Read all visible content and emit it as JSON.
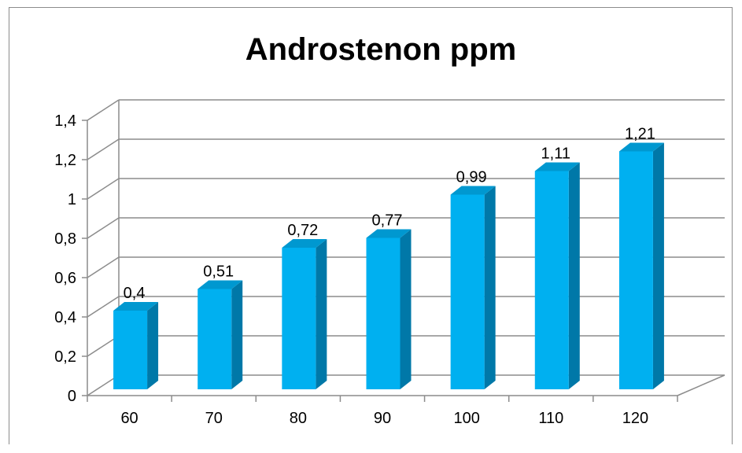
{
  "chart_data": {
    "type": "bar",
    "title": "Androstenon  ppm",
    "xlabel": "",
    "ylabel": "",
    "categories": [
      "60",
      "70",
      "80",
      "90",
      "100",
      "110",
      "120"
    ],
    "values": [
      0.4,
      0.51,
      0.72,
      0.77,
      0.99,
      1.11,
      1.21
    ],
    "value_labels": [
      "0,4",
      "0,51",
      "0,72",
      "0,77",
      "0,99",
      "1,11",
      "1,21"
    ],
    "ylim": [
      0,
      1.4
    ],
    "y_ticks": [
      0,
      0.2,
      0.4,
      0.6,
      0.8,
      1,
      1.2,
      1.4
    ],
    "y_tick_labels": [
      "0",
      "0,2",
      "0,4",
      "0,6",
      "0,8",
      "1",
      "1,2",
      "1,4"
    ],
    "grid": true,
    "legend": "none",
    "style": "3d-column",
    "colors": {
      "bar_front": "#00b0f0",
      "bar_side": "#0078a8",
      "bar_top": "#0098d0",
      "grid": "#8c8c8c",
      "text": "#000000"
    }
  }
}
